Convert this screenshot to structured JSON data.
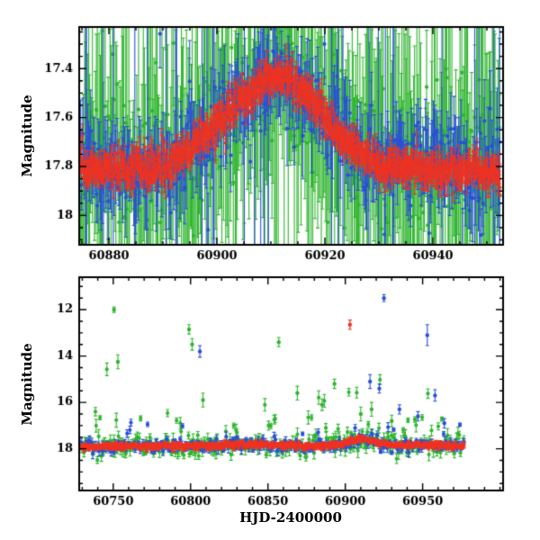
{
  "figure": {
    "background": "#ffffff",
    "frame_color": "#000000",
    "ylabel_top": "Magnitude",
    "ylabel_bottom": "Magnitude",
    "xlabel": "HJD-2400000"
  },
  "colors": {
    "red": "#ee3322",
    "green": "#2fb52f",
    "blue": "#2b4fd8"
  },
  "chart_data": [
    {
      "panel": "top",
      "type": "scatter",
      "title": "",
      "xlabel": "",
      "ylabel": "Magnitude",
      "xlim": [
        60874.5,
        60953
      ],
      "ylim_bottom_top": [
        18.12,
        17.23
      ],
      "x_range": [
        60874.5,
        60952.5
      ],
      "xticks": [
        60880,
        60900,
        60920,
        60940
      ],
      "xtick_labels": [
        "60880",
        "60900",
        "60920",
        "60940"
      ],
      "yticks": [
        17.4,
        17.6,
        17.8,
        18
      ],
      "ytick_labels": [
        "17.4",
        "17.6",
        "17.8",
        "18"
      ],
      "x_minor_step": 5,
      "y_minor_step": 0.05,
      "axis_note": "magnitude axis inverted (brighter up); three-band photometry with error bars",
      "trend_knots": [
        [
          60871,
          17.82
        ],
        [
          60880,
          17.81
        ],
        [
          60888,
          17.8
        ],
        [
          60893,
          17.76
        ],
        [
          60897,
          17.68
        ],
        [
          60901,
          17.6
        ],
        [
          60905,
          17.52
        ],
        [
          60908,
          17.47
        ],
        [
          60911,
          17.44
        ],
        [
          60913,
          17.45
        ],
        [
          60916,
          17.5
        ],
        [
          60919,
          17.57
        ],
        [
          60922,
          17.65
        ],
        [
          60926,
          17.74
        ],
        [
          60930,
          17.79
        ],
        [
          60935,
          17.81
        ],
        [
          60953,
          17.82
        ]
      ],
      "series": [
        {
          "name": "green-band",
          "color": "green",
          "n": 430,
          "seed": 101,
          "sigma": 0.12,
          "tail_frac": 0.2,
          "tail_mult": 2.5,
          "tail_dir": 0,
          "err_min": 0.14,
          "err_max": 0.5,
          "spike_frac": 0.13,
          "marker": 2.1
        },
        {
          "name": "blue-band",
          "color": "blue",
          "n": 430,
          "seed": 202,
          "sigma": 0.07,
          "tail_frac": 0.15,
          "tail_mult": 2.5,
          "tail_dir": 0,
          "err_min": 0.06,
          "err_max": 0.18,
          "spike_frac": 0.07,
          "marker": 2.1
        },
        {
          "name": "red-band",
          "color": "red",
          "n": 760,
          "seed": 303,
          "sigma": 0.032,
          "tail_frac": 0.05,
          "tail_mult": 1.8,
          "tail_dir": 0,
          "err_min": 0.025,
          "err_max": 0.06,
          "spike_frac": 0,
          "marker": 1.7
        }
      ],
      "outliers": []
    },
    {
      "panel": "bottom",
      "type": "scatter",
      "title": "",
      "xlabel": "HJD-2400000",
      "ylabel": "Magnitude",
      "xlim": [
        60728,
        61002
      ],
      "ylim_bottom_top": [
        19.8,
        10.6
      ],
      "x_range": [
        60729,
        60977
      ],
      "xticks": [
        60750,
        60800,
        60850,
        60900,
        60950
      ],
      "xtick_labels": [
        "60750",
        "60800",
        "60850",
        "60900",
        "60950"
      ],
      "yticks": [
        12,
        14,
        16,
        18
      ],
      "ytick_labels": [
        "12",
        "14",
        "16",
        "18"
      ],
      "x_minor_step": 10,
      "y_minor_step": 0.5,
      "axis_note": "quiescent band near mag 18 with bright flaring outliers up to mag 11.5",
      "trend_knots": [
        [
          60727,
          17.92
        ],
        [
          60760,
          17.9
        ],
        [
          60790,
          17.88
        ],
        [
          60815,
          17.85
        ],
        [
          60840,
          17.82
        ],
        [
          60860,
          17.85
        ],
        [
          60880,
          17.88
        ],
        [
          60897,
          17.8
        ],
        [
          60905,
          17.62
        ],
        [
          60910,
          17.55
        ],
        [
          60915,
          17.62
        ],
        [
          60922,
          17.75
        ],
        [
          60935,
          17.85
        ],
        [
          60950,
          17.85
        ],
        [
          60977,
          17.88
        ]
      ],
      "series": [
        {
          "name": "green-band",
          "color": "green",
          "n": 330,
          "seed": 404,
          "sigma": 0.22,
          "tail_frac": 0.14,
          "tail_mult": 5,
          "tail_dir": -1,
          "err_min": 0.08,
          "err_max": 0.3,
          "spike_frac": 0,
          "marker": 2.1
        },
        {
          "name": "blue-band",
          "color": "blue",
          "n": 300,
          "seed": 505,
          "sigma": 0.12,
          "tail_frac": 0.12,
          "tail_mult": 5,
          "tail_dir": -1,
          "err_min": 0.06,
          "err_max": 0.22,
          "spike_frac": 0,
          "marker": 2.1
        },
        {
          "name": "red-band",
          "color": "red",
          "n": 660,
          "seed": 606,
          "sigma": 0.06,
          "tail_frac": 0.04,
          "tail_mult": 2,
          "tail_dir": 0,
          "err_min": 0.04,
          "err_max": 0.1,
          "spike_frac": 0,
          "marker": 1.8
        }
      ],
      "outliers": [
        {
          "series": "green",
          "x": 60750.5,
          "y": 12.0,
          "err": 0.12
        },
        {
          "series": "green",
          "x": 60753,
          "y": 14.25,
          "err": 0.3
        },
        {
          "series": "green",
          "x": 60799,
          "y": 12.85,
          "err": 0.2
        },
        {
          "series": "green",
          "x": 60801,
          "y": 13.5,
          "err": 0.25
        },
        {
          "series": "green",
          "x": 60808,
          "y": 15.9,
          "err": 0.3
        },
        {
          "series": "green",
          "x": 60857,
          "y": 13.4,
          "err": 0.2
        },
        {
          "series": "green",
          "x": 60869,
          "y": 15.6,
          "err": 0.3
        },
        {
          "series": "green",
          "x": 60885,
          "y": 16.1,
          "err": 0.25
        },
        {
          "series": "green",
          "x": 60893,
          "y": 15.2,
          "err": 0.2
        },
        {
          "series": "green",
          "x": 60910,
          "y": 16.5,
          "err": 0.3
        },
        {
          "series": "green",
          "x": 60917,
          "y": 16.3,
          "err": 0.3
        },
        {
          "series": "green",
          "x": 60930,
          "y": 16.8,
          "err": 0.25
        },
        {
          "series": "blue",
          "x": 60806,
          "y": 13.8,
          "err": 0.25
        },
        {
          "series": "blue",
          "x": 60916,
          "y": 15.1,
          "err": 0.3
        },
        {
          "series": "blue",
          "x": 60922,
          "y": 15.4,
          "err": 0.2
        },
        {
          "series": "blue",
          "x": 60925,
          "y": 11.5,
          "err": 0.15
        },
        {
          "series": "blue",
          "x": 60935,
          "y": 16.3,
          "err": 0.2
        },
        {
          "series": "blue",
          "x": 60947,
          "y": 16.6,
          "err": 0.2
        },
        {
          "series": "blue",
          "x": 60953,
          "y": 13.1,
          "err": 0.45
        },
        {
          "series": "blue",
          "x": 60958,
          "y": 15.7,
          "err": 0.25
        },
        {
          "series": "blue",
          "x": 60964,
          "y": 16.9,
          "err": 0.2
        },
        {
          "series": "red",
          "x": 60903,
          "y": 12.65,
          "err": 0.2
        }
      ]
    }
  ]
}
